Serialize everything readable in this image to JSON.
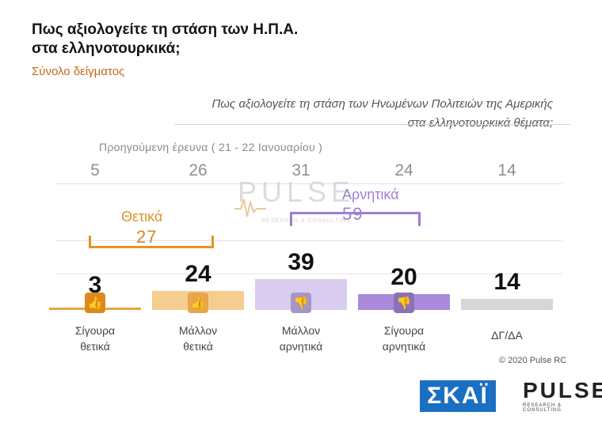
{
  "header": {
    "title_line1": "Πως αξιολογείτε τη στάση των Η.Π.Α.",
    "title_line2": "στα ελληνοτουρκικά;",
    "subtitle": "Σύνολο δείγματος"
  },
  "question": {
    "line1": "Πως αξιολογείτε τη στάση των Ηνωμένων Πολιτειών της Αμερικής",
    "line2": "στα ελληνοτουρκικά θέματα;"
  },
  "previous": {
    "label": "Προηγούμενη έρευνα   ( 21 - 22 Ιανουαρίου )"
  },
  "groups": {
    "positive": {
      "label": "Θετικά",
      "total": "27",
      "color": "#e09524"
    },
    "negative": {
      "label": "Αρνητικά",
      "total": "59",
      "color": "#9b7fd4"
    }
  },
  "watermark": {
    "text": "PULSE",
    "sub": "RESEARCH & CONSULTING"
  },
  "chart_data": {
    "type": "bar",
    "categories": [
      "Σίγουρα θετικά",
      "Μάλλον θετικά",
      "Μάλλον αρνητικά",
      "Σίγουρα αρνητικά",
      "ΔΓ/ΔΑ"
    ],
    "category_lines": [
      [
        "Σίγουρα",
        "θετικά"
      ],
      [
        "Μάλλον",
        "θετικά"
      ],
      [
        "Μάλλον",
        "αρνητικά"
      ],
      [
        "Σίγουρα",
        "αρνητικά"
      ],
      [
        "ΔΓ/ΔΑ",
        ""
      ]
    ],
    "values": [
      3,
      24,
      39,
      20,
      14
    ],
    "previous_values": [
      5,
      26,
      31,
      24,
      14
    ],
    "colors": [
      "#e8a540",
      "#f4cd8f",
      "#d8cdee",
      "#a98bdc",
      "#d6d6d6"
    ],
    "icon_colors": [
      "#dc8a1e",
      "#e6a74a",
      "#a596c2",
      "#8a73b4",
      ""
    ],
    "icons": [
      "thumbs-up-double-icon",
      "thumbs-up-icon",
      "thumbs-down-icon",
      "thumbs-down-double-icon",
      ""
    ]
  },
  "footer": {
    "copyright": "© 2020 Pulse RC",
    "logo_left": "ΣΚΑΪ",
    "logo_right": "PULSE",
    "logo_right_sub": "RESEARCH & CONSULTING"
  }
}
